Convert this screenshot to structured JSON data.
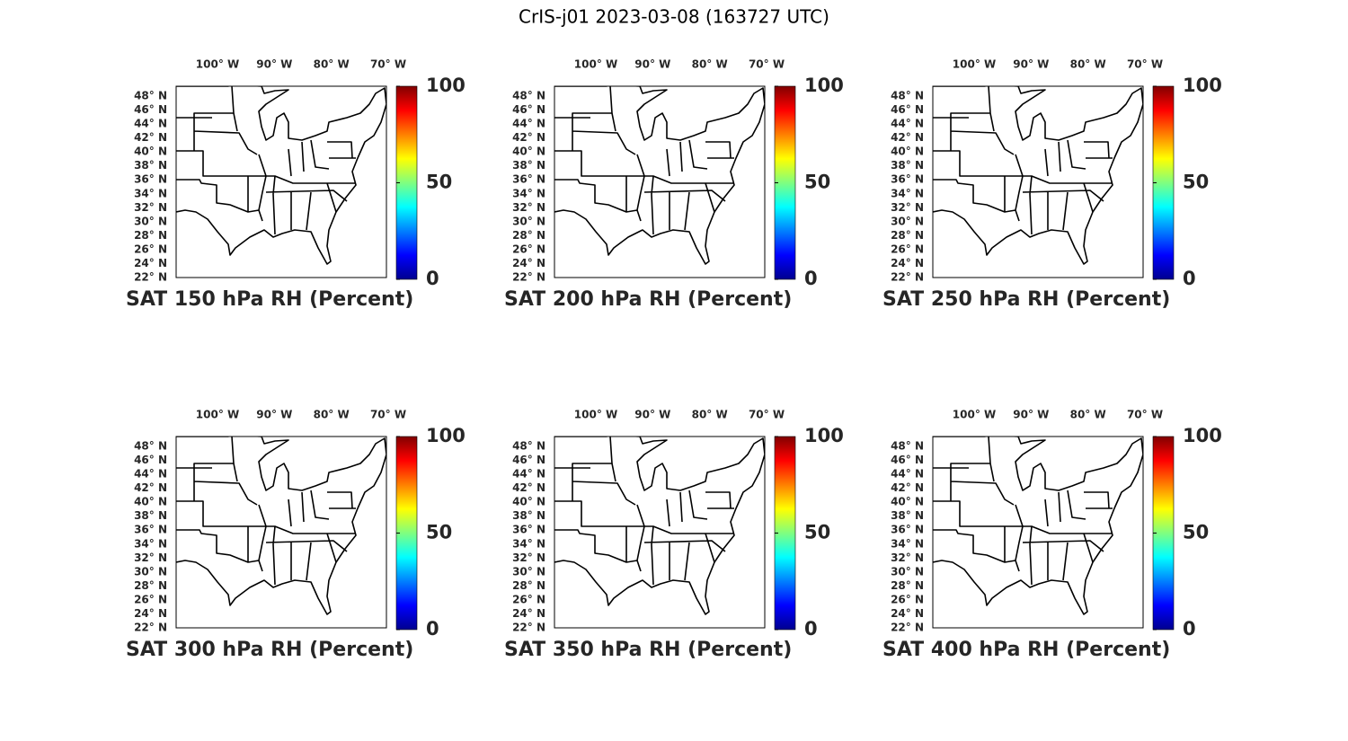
{
  "title": "CrIS-j01 2023-03-08 (163727 UTC)",
  "panels": [
    {
      "title": "SAT 150 hPa RH (Percent)"
    },
    {
      "title": "SAT 200 hPa RH (Percent)"
    },
    {
      "title": "SAT 250 hPa RH (Percent)"
    },
    {
      "title": "SAT 300 hPa RH (Percent)"
    },
    {
      "title": "SAT 350 hPa RH (Percent)"
    },
    {
      "title": "SAT 400 hPa RH (Percent)"
    }
  ],
  "map": {
    "lon_ticks": [
      {
        "value": 100,
        "label": "100° W"
      },
      {
        "value": 90,
        "label": "90° W"
      },
      {
        "value": 80,
        "label": "80° W"
      },
      {
        "value": 70,
        "label": "70° W"
      }
    ],
    "lat_ticks": [
      {
        "value": 22,
        "label": "22° N"
      },
      {
        "value": 24,
        "label": "24° N"
      },
      {
        "value": 26,
        "label": "26° N"
      },
      {
        "value": 28,
        "label": "28° N"
      },
      {
        "value": 30,
        "label": "30° N"
      },
      {
        "value": 32,
        "label": "32° N"
      },
      {
        "value": 34,
        "label": "34° N"
      },
      {
        "value": 36,
        "label": "36° N"
      },
      {
        "value": 38,
        "label": "38° N"
      },
      {
        "value": 40,
        "label": "40° N"
      },
      {
        "value": 42,
        "label": "42° N"
      },
      {
        "value": 44,
        "label": "44° N"
      },
      {
        "value": 46,
        "label": "46° N"
      },
      {
        "value": 48,
        "label": "48° N"
      }
    ]
  },
  "colorbar": {
    "lim": [
      0,
      100
    ],
    "ticks": [
      0,
      50,
      100
    ]
  }
}
